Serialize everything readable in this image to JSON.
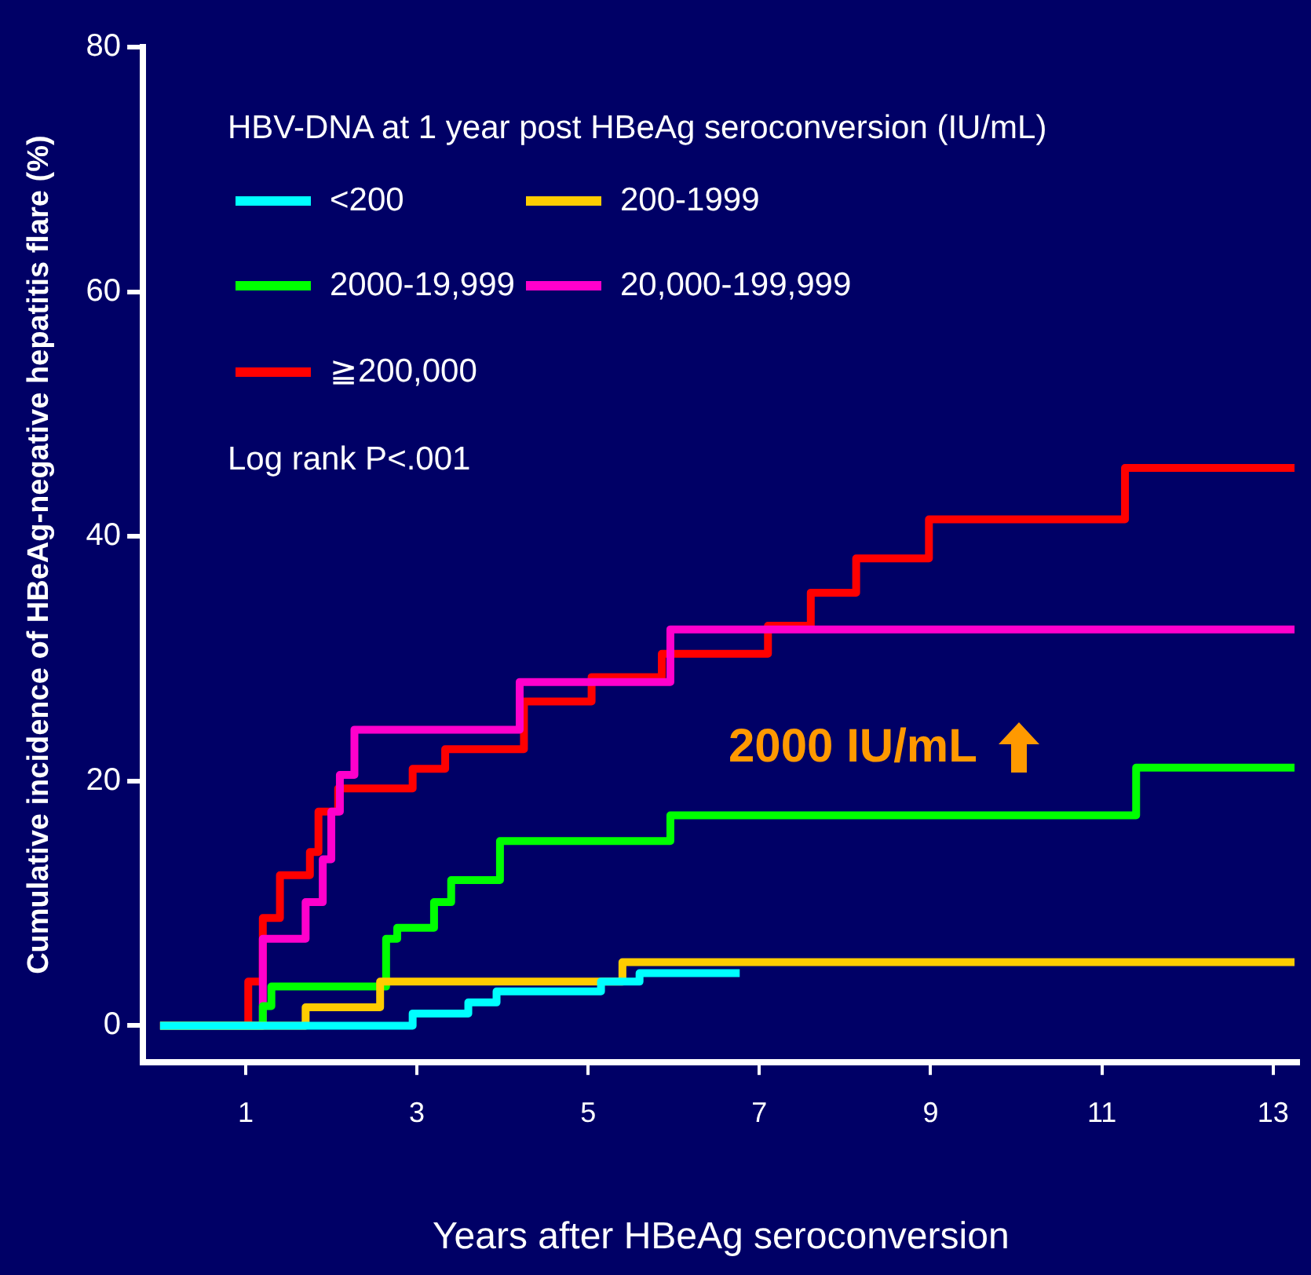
{
  "chart_data": {
    "type": "step",
    "xlabel": "Years after HBeAg seroconversion",
    "ylabel": "Cumulative incidence of HBeAg-negative hepatitis flare (%)",
    "legend_title": "HBV-DNA at 1 year post HBeAg seroconversion (IU/mL)",
    "legend": "top left",
    "grid": false,
    "line_style": "solid",
    "marker": "none",
    "xlim": [
      -0.2,
      13.3
    ],
    "xticks": [
      1,
      3,
      5,
      7,
      9,
      11,
      13
    ],
    "ylim": [
      -3,
      80
    ],
    "yticks": [
      0,
      20,
      40,
      60,
      80
    ],
    "annotations": [
      "Log rank P<.001",
      "2000 IU/mL"
    ],
    "series": [
      {
        "name": "<200",
        "color": "#00ffff",
        "x": [
          0,
          2.95,
          3.6,
          3.93,
          5.15,
          5.6,
          6.77
        ],
        "values": [
          0,
          1,
          1.9,
          2.8,
          3.6,
          4.3,
          4.3
        ]
      },
      {
        "name": "200-1999",
        "color": "#ffcc00",
        "x": [
          0,
          1.7,
          2.57,
          5.4,
          13.25
        ],
        "values": [
          0,
          1.5,
          3.6,
          5.2,
          5.2
        ]
      },
      {
        "name": "2000-19,999",
        "color": "#00ff00",
        "x": [
          0,
          1.2,
          1.3,
          2.64,
          2.77,
          3.2,
          3.4,
          3.97,
          5.96,
          11.4,
          13.25
        ],
        "values": [
          0,
          1.6,
          3.2,
          7.1,
          8,
          10.1,
          11.9,
          15.1,
          17.2,
          21.1,
          21.1
        ]
      },
      {
        "name": "20,000-199,999",
        "color": "#ff00cc",
        "x": [
          0,
          1.2,
          1.7,
          1.9,
          2,
          2.1,
          2.27,
          4.2,
          5.96,
          13.25
        ],
        "values": [
          0,
          7.1,
          10.1,
          13.6,
          17.5,
          20.5,
          24.2,
          28.1,
          32.4,
          32.4
        ]
      },
      {
        "name": "≧200,000",
        "color": "#ff0000",
        "x": [
          0,
          1.03,
          1.2,
          1.4,
          1.75,
          1.85,
          2.08,
          2.95,
          3.33,
          4.25,
          5.04,
          5.86,
          7.1,
          7.6,
          8.13,
          8.98,
          11.27,
          13.25
        ],
        "values": [
          0,
          3.6,
          8.8,
          12.3,
          14.2,
          17.5,
          19.4,
          21,
          22.6,
          26.5,
          28.5,
          30.4,
          32.7,
          35.4,
          38.2,
          41.4,
          45.6,
          45.6
        ]
      }
    ]
  }
}
